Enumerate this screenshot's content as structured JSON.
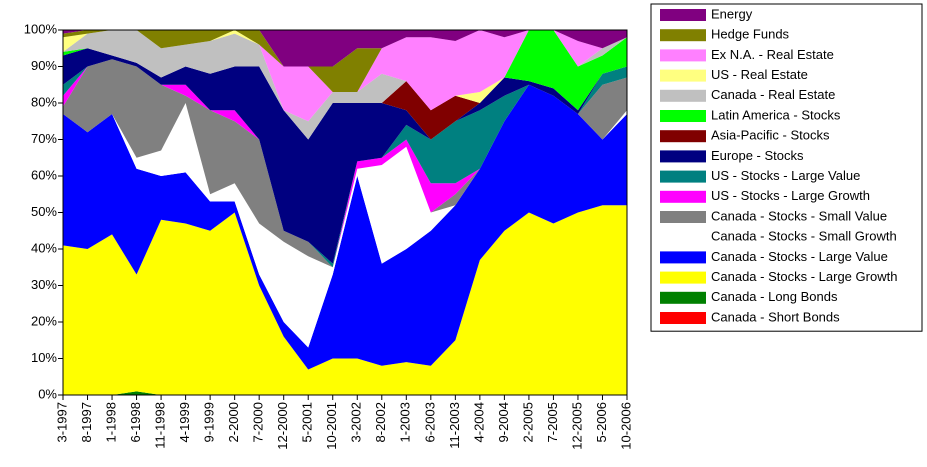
{
  "chart_data": {
    "type": "area",
    "stacked": true,
    "categories": [
      "3-1997",
      "8-1997",
      "1-1998",
      "6-1998",
      "11-1998",
      "4-1999",
      "9-1999",
      "2-2000",
      "7-2000",
      "12-2000",
      "5-2001",
      "10-2001",
      "3-2002",
      "8-2002",
      "1-2003",
      "6-2003",
      "11-2003",
      "4-2004",
      "9-2004",
      "2-2005",
      "7-2005",
      "12-2005",
      "5-2006",
      "10-2006"
    ],
    "series": [
      {
        "name": "Canada - Short Bonds",
        "color": "#ff0000",
        "values": [
          0,
          0,
          0,
          0,
          0,
          0,
          0,
          0,
          0,
          0,
          0,
          0,
          0,
          0,
          0,
          0,
          0,
          0,
          0,
          0,
          0,
          0,
          0,
          0
        ]
      },
      {
        "name": "Canada - Long Bonds",
        "color": "#008000",
        "values": [
          0,
          0,
          0,
          1,
          0,
          0,
          0,
          0,
          0,
          0,
          0,
          0,
          0,
          0,
          0,
          0,
          0,
          0,
          0,
          0,
          0,
          0,
          0,
          0
        ]
      },
      {
        "name": "Canada - Stocks - Large Growth",
        "color": "#ffff00",
        "values": [
          41,
          40,
          44,
          32,
          48,
          47,
          45,
          50,
          30,
          16,
          7,
          10,
          10,
          8,
          9,
          8,
          15,
          37,
          45,
          50,
          47,
          50,
          52,
          52
        ]
      },
      {
        "name": "Canada - Stocks - Large Value",
        "color": "#0000ff",
        "values": [
          36,
          32,
          33,
          29,
          12,
          14,
          8,
          3,
          3,
          4,
          6,
          23,
          50,
          28,
          31,
          37,
          37,
          25,
          30,
          35,
          35,
          27,
          18,
          25
        ]
      },
      {
        "name": "Canada - Stocks - Small Growth",
        "color": "#ffffff",
        "values": [
          0,
          0,
          0,
          3,
          7,
          19,
          2,
          5,
          14,
          22,
          25,
          2,
          2,
          27,
          28,
          5,
          0,
          0,
          0,
          0,
          0,
          0,
          0,
          1
        ]
      },
      {
        "name": "Canada - Stocks - Small Value",
        "color": "#808080",
        "values": [
          2,
          18,
          15,
          25,
          18,
          2,
          23,
          17,
          23,
          3,
          4,
          0,
          0,
          0,
          0,
          0,
          3,
          0,
          0,
          0,
          0,
          0,
          15,
          9
        ]
      },
      {
        "name": "US - Stocks - Large Growth",
        "color": "#ff00ff",
        "values": [
          3,
          0,
          0,
          0,
          0,
          3,
          0,
          3,
          0,
          0,
          0,
          0,
          2,
          2,
          2,
          8,
          3,
          0,
          0,
          0,
          0,
          0,
          0,
          0
        ]
      },
      {
        "name": "US - Stocks - Large Value",
        "color": "#008080",
        "values": [
          3,
          0,
          0,
          0,
          0,
          0,
          0,
          0,
          0,
          0,
          0,
          1,
          0,
          0,
          4,
          12,
          17,
          16,
          7,
          0,
          0,
          0,
          3,
          3
        ]
      },
      {
        "name": "Europe - Stocks",
        "color": "#000080",
        "values": [
          8,
          5,
          1,
          1,
          2,
          5,
          10,
          12,
          20,
          33,
          28,
          44,
          16,
          15,
          4,
          0,
          0,
          2,
          5,
          1,
          2,
          1,
          0,
          0
        ]
      },
      {
        "name": "Asia-Pacific - Stocks",
        "color": "#800000",
        "values": [
          0,
          0,
          0,
          0,
          0,
          0,
          0,
          0,
          0,
          0,
          0,
          0,
          0,
          0,
          8,
          8,
          7,
          0,
          0,
          0,
          0,
          0,
          0,
          0
        ]
      },
      {
        "name": "Latin America - Stocks",
        "color": "#00ff00",
        "values": [
          1,
          0,
          0,
          0,
          0,
          0,
          0,
          0,
          0,
          0,
          0,
          0,
          0,
          0,
          0,
          0,
          0,
          0,
          0,
          14,
          16,
          12,
          5,
          8
        ]
      },
      {
        "name": "Canada - Real Estate",
        "color": "#c0c0c0",
        "values": [
          0,
          4,
          7,
          9,
          8,
          6,
          9,
          9,
          6,
          0,
          5,
          3,
          3,
          8,
          0,
          0,
          0,
          0,
          0,
          0,
          0,
          0,
          2,
          0
        ]
      },
      {
        "name": "US - Real Estate",
        "color": "#ffff80",
        "values": [
          4,
          0,
          0,
          0,
          0,
          0,
          0,
          1,
          0,
          0,
          0,
          0,
          0,
          0,
          0,
          0,
          0,
          3,
          0,
          0,
          0,
          0,
          0,
          0
        ]
      },
      {
        "name": "Ex N.A. - Real Estate",
        "color": "#ff80ff",
        "values": [
          0,
          0,
          0,
          0,
          0,
          0,
          0,
          0,
          0,
          12,
          15,
          0,
          0,
          7,
          12,
          20,
          15,
          17,
          11,
          0,
          0,
          7,
          0,
          0
        ]
      },
      {
        "name": "Hedge Funds",
        "color": "#808000",
        "values": [
          1,
          1,
          0,
          0,
          5,
          4,
          3,
          0,
          4,
          0,
          0,
          7,
          12,
          0,
          0,
          0,
          0,
          0,
          0,
          0,
          0,
          0,
          0,
          0
        ]
      },
      {
        "name": "Energy",
        "color": "#800080",
        "values": [
          1,
          0,
          0,
          0,
          0,
          0,
          0,
          0,
          0,
          10,
          10,
          10,
          5,
          5,
          2,
          2,
          3,
          0,
          2,
          0,
          0,
          3,
          5,
          2
        ]
      }
    ],
    "ylim": [
      0,
      100
    ],
    "yticks": [
      {
        "value": 0,
        "label": "0%"
      },
      {
        "value": 10,
        "label": "10%"
      },
      {
        "value": 20,
        "label": "20%"
      },
      {
        "value": 30,
        "label": "30%"
      },
      {
        "value": 40,
        "label": "40%"
      },
      {
        "value": 50,
        "label": "50%"
      },
      {
        "value": 60,
        "label": "60%"
      },
      {
        "value": 70,
        "label": "70%"
      },
      {
        "value": 80,
        "label": "80%"
      },
      {
        "value": 90,
        "label": "90%"
      },
      {
        "value": 100,
        "label": "100%"
      }
    ],
    "legend": "right"
  }
}
